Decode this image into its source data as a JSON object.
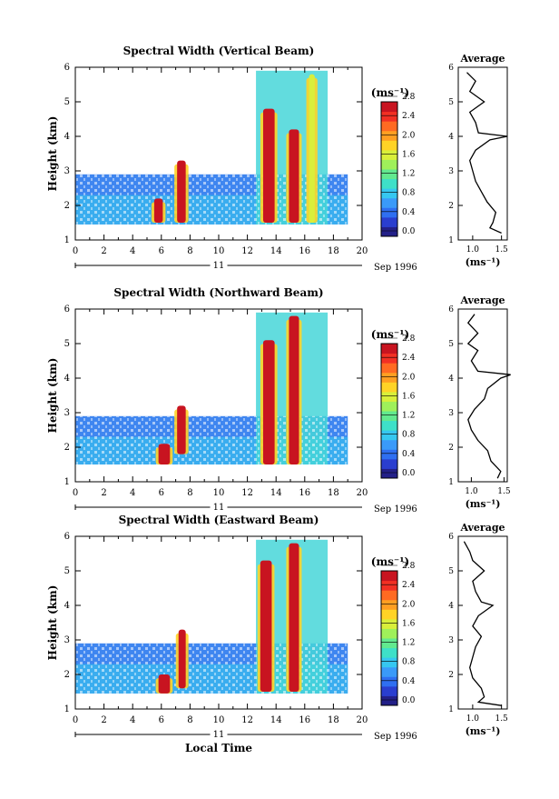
{
  "chart_data": [
    {
      "type": "heatmap",
      "title": "Spectral Width (Vertical Beam)",
      "xlabel": "",
      "ylabel": "Height (km)",
      "xlim": [
        0,
        20
      ],
      "ylim": [
        1,
        6
      ],
      "x_ticks": [
        "0",
        "2",
        "4",
        "6",
        "8",
        "10",
        "12",
        "14",
        "16",
        "18",
        "20"
      ],
      "y_ticks": [
        "1",
        "2",
        "3",
        "4",
        "5",
        "6"
      ],
      "date_axis": {
        "day": "11",
        "month_year": "Sep 1996"
      },
      "colorbar": {
        "unit": "(ms⁻¹)",
        "ticks": [
          "0.0",
          "0.4",
          "0.8",
          "1.2",
          "1.6",
          "2.0",
          "2.4",
          "2.8"
        ]
      },
      "data_extent": {
        "x": [
          0,
          19
        ],
        "y": [
          1.45,
          5.9
        ]
      },
      "bands": [
        {
          "x": [
            5.5,
            6.1
          ],
          "y": [
            1.5,
            2.2
          ],
          "value": 2.6
        },
        {
          "x": [
            7.1,
            7.7
          ],
          "y": [
            1.5,
            3.3
          ],
          "value": 2.9
        },
        {
          "x": [
            13.1,
            13.9
          ],
          "y": [
            1.5,
            4.8
          ],
          "value": 2.9
        },
        {
          "x": [
            14.9,
            15.6
          ],
          "y": [
            1.5,
            4.2
          ],
          "value": 2.9
        },
        {
          "x": [
            16.3,
            16.7
          ],
          "y": [
            1.5,
            5.8
          ],
          "value": 1.6
        }
      ],
      "average": {
        "title": "Average",
        "xlabel": "(ms⁻¹)",
        "xticks": [
          "1.0",
          "1.5"
        ],
        "xlim": [
          0.75,
          1.6
        ],
        "y": [
          1.2,
          1.35,
          1.5,
          1.8,
          2.1,
          2.4,
          2.7,
          3.0,
          3.3,
          3.6,
          3.9,
          4.0,
          4.1,
          4.4,
          4.7,
          5.0,
          5.3,
          5.6,
          5.85
        ],
        "value": [
          1.5,
          1.3,
          1.35,
          1.4,
          1.25,
          1.15,
          1.05,
          1.0,
          0.95,
          1.05,
          1.3,
          1.6,
          1.1,
          1.05,
          0.95,
          1.2,
          0.95,
          1.05,
          0.9
        ]
      }
    },
    {
      "type": "heatmap",
      "title": "Spectral Width (Northward Beam)",
      "xlabel": "",
      "ylabel": "Height (km)",
      "xlim": [
        0,
        20
      ],
      "ylim": [
        1,
        6
      ],
      "x_ticks": [
        "0",
        "2",
        "4",
        "6",
        "8",
        "10",
        "12",
        "14",
        "16",
        "18",
        "20"
      ],
      "y_ticks": [
        "1",
        "2",
        "3",
        "4",
        "5",
        "6"
      ],
      "date_axis": {
        "day": "11",
        "month_year": "Sep 1996"
      },
      "colorbar": {
        "unit": "(ms⁻¹)",
        "ticks": [
          "0.0",
          "0.4",
          "0.8",
          "1.2",
          "1.6",
          "2.0",
          "2.4",
          "2.8"
        ]
      },
      "data_extent": {
        "x": [
          0,
          19
        ],
        "y": [
          1.5,
          5.9
        ]
      },
      "bands": [
        {
          "x": [
            5.8,
            6.6
          ],
          "y": [
            1.5,
            2.1
          ],
          "value": 2.6
        },
        {
          "x": [
            7.1,
            7.7
          ],
          "y": [
            1.8,
            3.2
          ],
          "value": 2.9
        },
        {
          "x": [
            13.1,
            13.9
          ],
          "y": [
            1.5,
            5.1
          ],
          "value": 2.9
        },
        {
          "x": [
            14.9,
            15.6
          ],
          "y": [
            1.5,
            5.8
          ],
          "value": 2.9
        }
      ],
      "average": {
        "title": "Average",
        "xlabel": "(ms⁻¹)",
        "xticks": [
          "1.0",
          "1.5"
        ],
        "xlim": [
          0.8,
          1.55
        ],
        "y": [
          1.1,
          1.3,
          1.6,
          1.9,
          2.2,
          2.5,
          2.8,
          3.1,
          3.4,
          3.7,
          4.0,
          4.1,
          4.2,
          4.5,
          4.8,
          5.0,
          5.3,
          5.6,
          5.85
        ],
        "value": [
          1.4,
          1.45,
          1.3,
          1.25,
          1.1,
          1.0,
          0.95,
          1.05,
          1.2,
          1.25,
          1.45,
          1.6,
          1.1,
          1.0,
          1.1,
          0.95,
          1.1,
          0.95,
          1.05
        ]
      }
    },
    {
      "type": "heatmap",
      "title": "Spectral Width (Eastward Beam)",
      "xlabel": "Local Time",
      "ylabel": "Height (km)",
      "xlim": [
        0,
        20
      ],
      "ylim": [
        1,
        6
      ],
      "x_ticks": [
        "0",
        "2",
        "4",
        "6",
        "8",
        "10",
        "12",
        "14",
        "16",
        "18",
        "20"
      ],
      "y_ticks": [
        "1",
        "2",
        "3",
        "4",
        "5",
        "6"
      ],
      "date_axis": {
        "day": "11",
        "month_year": "Sep 1996"
      },
      "colorbar": {
        "unit": "(ms⁻¹)",
        "ticks": [
          "0.0",
          "0.4",
          "0.8",
          "1.2",
          "1.6",
          "2.0",
          "2.4",
          "2.8"
        ]
      },
      "data_extent": {
        "x": [
          0,
          19
        ],
        "y": [
          1.45,
          5.9
        ]
      },
      "bands": [
        {
          "x": [
            5.8,
            6.6
          ],
          "y": [
            1.45,
            2.0
          ],
          "value": 2.6
        },
        {
          "x": [
            7.2,
            7.7
          ],
          "y": [
            1.6,
            3.3
          ],
          "value": 2.9
        },
        {
          "x": [
            12.9,
            13.7
          ],
          "y": [
            1.5,
            5.3
          ],
          "value": 2.9
        },
        {
          "x": [
            14.9,
            15.6
          ],
          "y": [
            1.5,
            5.8
          ],
          "value": 2.9
        }
      ],
      "average": {
        "title": "Average",
        "xlabel": "(ms⁻¹)",
        "xticks": [
          "1.0",
          "1.5"
        ],
        "xlim": [
          0.75,
          1.6
        ],
        "y": [
          1.1,
          1.2,
          1.35,
          1.6,
          1.9,
          2.2,
          2.5,
          2.8,
          3.1,
          3.4,
          3.7,
          4.0,
          4.1,
          4.4,
          4.7,
          5.0,
          5.3,
          5.55,
          5.85
        ],
        "value": [
          1.5,
          1.1,
          1.2,
          1.15,
          1.0,
          0.95,
          1.0,
          1.05,
          1.15,
          1.0,
          1.1,
          1.35,
          1.15,
          1.05,
          1.0,
          1.2,
          1.0,
          0.95,
          0.85
        ]
      }
    }
  ]
}
